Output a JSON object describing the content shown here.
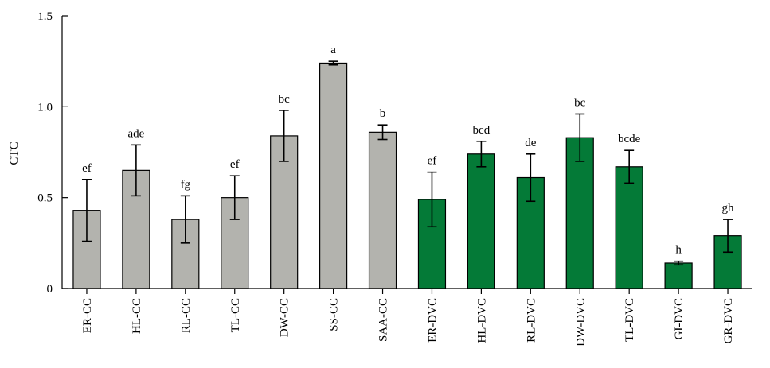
{
  "chart_data": {
    "type": "bar",
    "ylabel": "CTC",
    "ylim": [
      0,
      1.5
    ],
    "yticks": [
      {
        "value": 0,
        "label": "0"
      },
      {
        "value": 0.5,
        "label": "0.5"
      },
      {
        "value": 1.0,
        "label": "1.0"
      },
      {
        "value": 1.5,
        "label": "1.5"
      }
    ],
    "categories": [
      "ER-CC",
      "HL-CC",
      "RL-CC",
      "TL-CC",
      "DW-CC",
      "SS-CC",
      "SAA-CC",
      "ER-DVC",
      "HL-DVC",
      "RL-DVC",
      "DW-DVC",
      "TL-DVC",
      "GI-DVC",
      "GR-DVC"
    ],
    "values": [
      0.43,
      0.65,
      0.38,
      0.5,
      0.84,
      1.24,
      0.86,
      0.49,
      0.74,
      0.61,
      0.83,
      0.67,
      0.14,
      0.29
    ],
    "errors": [
      0.17,
      0.14,
      0.13,
      0.12,
      0.14,
      0.01,
      0.04,
      0.15,
      0.07,
      0.13,
      0.13,
      0.09,
      0.01,
      0.09
    ],
    "significance": [
      "ef",
      "ade",
      "fg",
      "ef",
      "bc",
      "a",
      "b",
      "ef",
      "bcd",
      "de",
      "bc",
      "bcde",
      "h",
      "gh"
    ],
    "colors": {
      "CC": "#b3b3ae",
      "DVC": "#047a37"
    }
  }
}
